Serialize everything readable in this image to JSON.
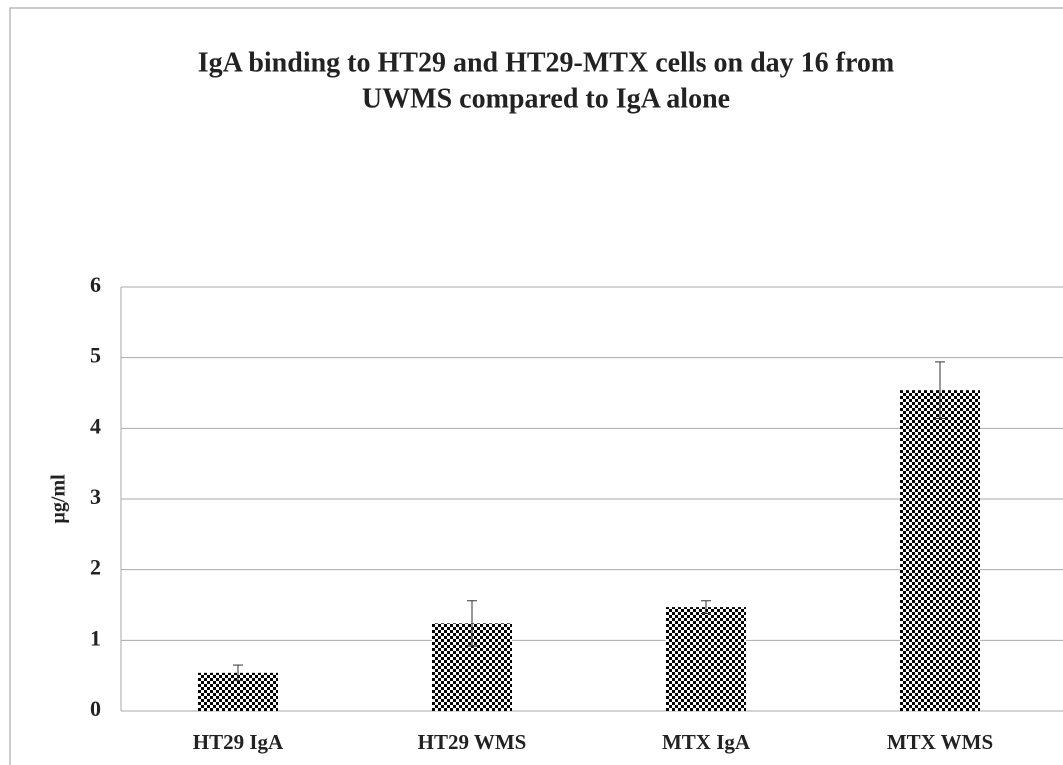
{
  "chart_data": {
    "type": "bar",
    "title": [
      "IgA binding to HT29 and HT29-MTX cells on day 16 from",
      "UWMS compared to IgA alone"
    ],
    "y_label": "µg/ml",
    "categories": [
      "HT29 IgA",
      "HT29 WMS",
      "MTX IgA",
      "MTX WMS"
    ],
    "values": [
      0.54,
      1.24,
      1.47,
      4.54
    ],
    "errors": [
      0.11,
      0.32,
      0.09,
      0.4
    ],
    "color": "#000000",
    "ylim": [
      0,
      6
    ],
    "yticks": [
      0,
      1,
      2,
      3,
      4,
      5,
      6
    ],
    "grid": true
  }
}
